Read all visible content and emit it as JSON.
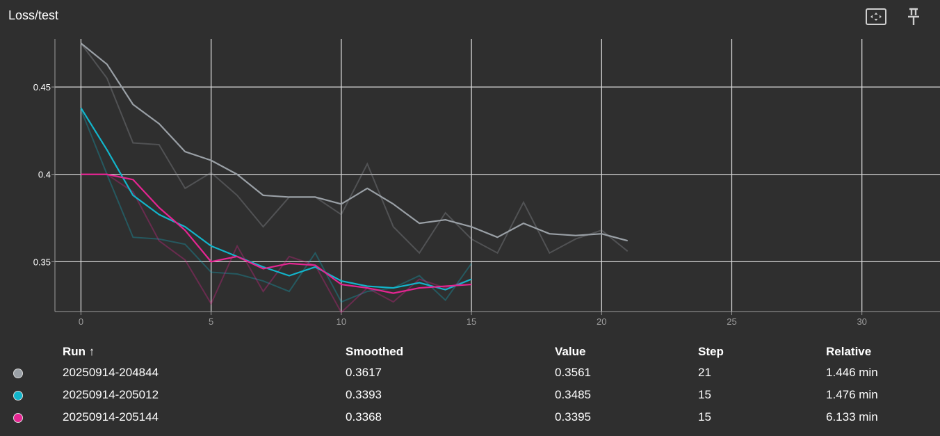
{
  "card": {
    "title": "Loss/test"
  },
  "toolbar": {
    "fit_icon": "fit-to-screen-icon",
    "pin_icon": "pin-icon"
  },
  "chart_data": {
    "type": "line",
    "xlim": [
      -1,
      33
    ],
    "ylim": [
      0.3215,
      0.4775
    ],
    "xticks": [
      0,
      5,
      10,
      15,
      20,
      25,
      30
    ],
    "yticks": [
      0.35,
      0.4,
      0.45
    ],
    "ytick_labels": [
      "0.35",
      "0.4",
      "0.45"
    ],
    "grid": true,
    "series": [
      {
        "name": "20250914-204844",
        "color": "#9aa0a6",
        "x": [
          0,
          1,
          2,
          3,
          4,
          5,
          6,
          7,
          8,
          9,
          10,
          11,
          12,
          13,
          14,
          15,
          16,
          17,
          18,
          19,
          20,
          21
        ],
        "raw": [
          0.475,
          0.455,
          0.418,
          0.417,
          0.392,
          0.401,
          0.388,
          0.37,
          0.387,
          0.387,
          0.377,
          0.406,
          0.37,
          0.355,
          0.378,
          0.363,
          0.355,
          0.384,
          0.355,
          0.363,
          0.368,
          0.356
        ],
        "smoothed": [
          0.475,
          0.463,
          0.44,
          0.429,
          0.413,
          0.408,
          0.4,
          0.388,
          0.387,
          0.387,
          0.383,
          0.392,
          0.383,
          0.372,
          0.374,
          0.37,
          0.364,
          0.372,
          0.366,
          0.365,
          0.366,
          0.362
        ]
      },
      {
        "name": "20250914-205012",
        "color": "#12b5cb",
        "x": [
          0,
          1,
          2,
          3,
          4,
          5,
          6,
          7,
          8,
          9,
          10,
          11,
          12,
          13,
          14,
          15
        ],
        "raw": [
          0.437,
          0.4,
          0.364,
          0.363,
          0.36,
          0.344,
          0.343,
          0.339,
          0.333,
          0.355,
          0.327,
          0.333,
          0.335,
          0.342,
          0.328,
          0.349
        ],
        "smoothed": [
          0.438,
          0.414,
          0.388,
          0.377,
          0.37,
          0.359,
          0.353,
          0.347,
          0.342,
          0.347,
          0.339,
          0.336,
          0.335,
          0.338,
          0.334,
          0.34
        ]
      },
      {
        "name": "20250914-205144",
        "color": "#e52592",
        "x": [
          0,
          1,
          2,
          3,
          4,
          5,
          6,
          7,
          8,
          9,
          10,
          11,
          12,
          13,
          14,
          15
        ],
        "raw": [
          0.4,
          0.4,
          0.39,
          0.362,
          0.351,
          0.326,
          0.359,
          0.333,
          0.353,
          0.348,
          0.321,
          0.335,
          0.327,
          0.34,
          0.335,
          0.34
        ],
        "smoothed": [
          0.4,
          0.4,
          0.397,
          0.381,
          0.368,
          0.35,
          0.353,
          0.346,
          0.349,
          0.348,
          0.337,
          0.335,
          0.332,
          0.335,
          0.336,
          0.337
        ]
      }
    ]
  },
  "table": {
    "headers": {
      "run": "Run ↑",
      "smoothed": "Smoothed",
      "value": "Value",
      "step": "Step",
      "relative": "Relative"
    },
    "rows": [
      {
        "run": "20250914-204844",
        "smoothed": "0.3617",
        "value": "0.3561",
        "step": "21",
        "relative": "1.446 min",
        "color": "#9aa0a6"
      },
      {
        "run": "20250914-205012",
        "smoothed": "0.3393",
        "value": "0.3485",
        "step": "15",
        "relative": "1.476 min",
        "color": "#12b5cb"
      },
      {
        "run": "20250914-205144",
        "smoothed": "0.3368",
        "value": "0.3395",
        "step": "15",
        "relative": "6.133 min",
        "color": "#e52592"
      }
    ]
  }
}
